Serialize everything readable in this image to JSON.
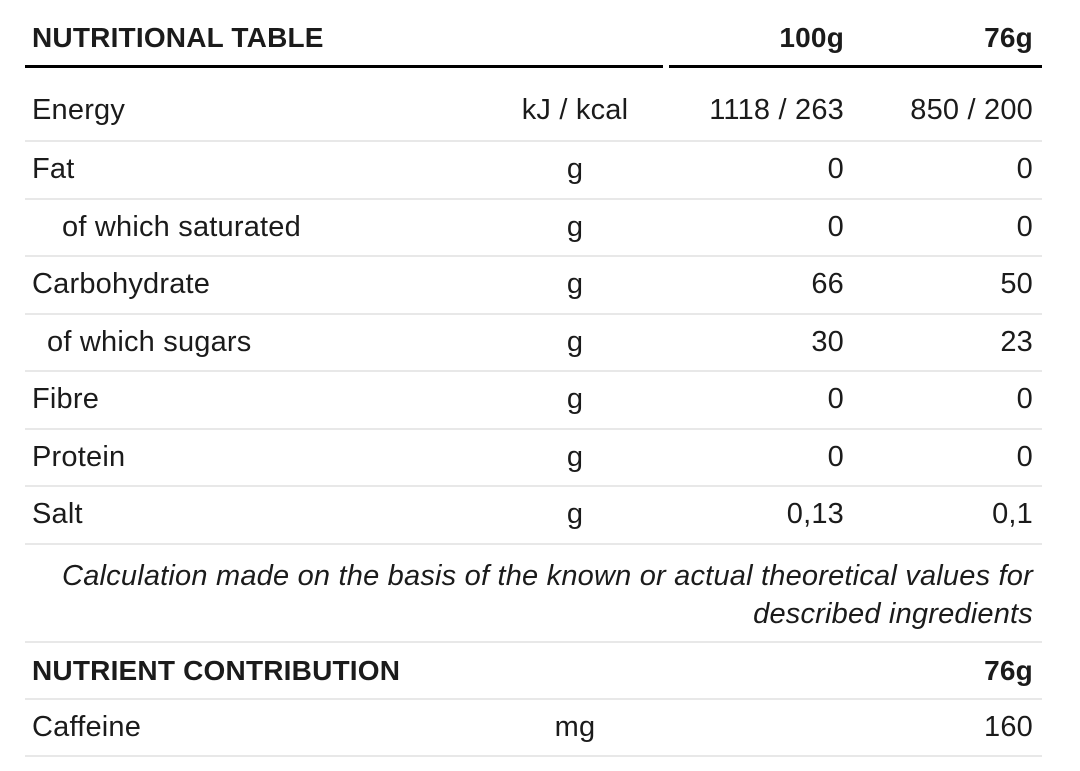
{
  "colors": {
    "background": "#ffffff",
    "text": "#1b1b1b",
    "header_rule": "#000000",
    "divider": "#e8e8e8"
  },
  "nutritional_table": {
    "title": "NUTRITIONAL TABLE",
    "column_headers": [
      "100g",
      "76g"
    ],
    "rows": [
      {
        "label": "Energy",
        "unit": "kJ / kcal",
        "per_100g": "1118 / 263",
        "per_76g": "850 / 200"
      },
      {
        "label": "Fat",
        "unit": "g",
        "per_100g": "0",
        "per_76g": "0"
      },
      {
        "label": "of which saturated",
        "unit": "g",
        "per_100g": "0",
        "per_76g": "0"
      },
      {
        "label": "Carbohydrate",
        "unit": "g",
        "per_100g": "66",
        "per_76g": "50"
      },
      {
        "label": "of which sugars",
        "unit": "g",
        "per_100g": "30",
        "per_76g": "23"
      },
      {
        "label": "Fibre",
        "unit": "g",
        "per_100g": "0",
        "per_76g": "0"
      },
      {
        "label": "Protein",
        "unit": "g",
        "per_100g": "0",
        "per_76g": "0"
      },
      {
        "label": "Salt",
        "unit": "g",
        "per_100g": "0,13",
        "per_76g": "0,1"
      }
    ],
    "note_lines": [
      "Calculation made on the basis of the known or actual theoretical values for",
      "described ingredients"
    ]
  },
  "nutrient_contribution": {
    "title": "NUTRIENT CONTRIBUTION",
    "column_header": "76g",
    "rows": [
      {
        "label": "Caffeine",
        "unit": "mg",
        "per_76g": "160"
      }
    ]
  }
}
